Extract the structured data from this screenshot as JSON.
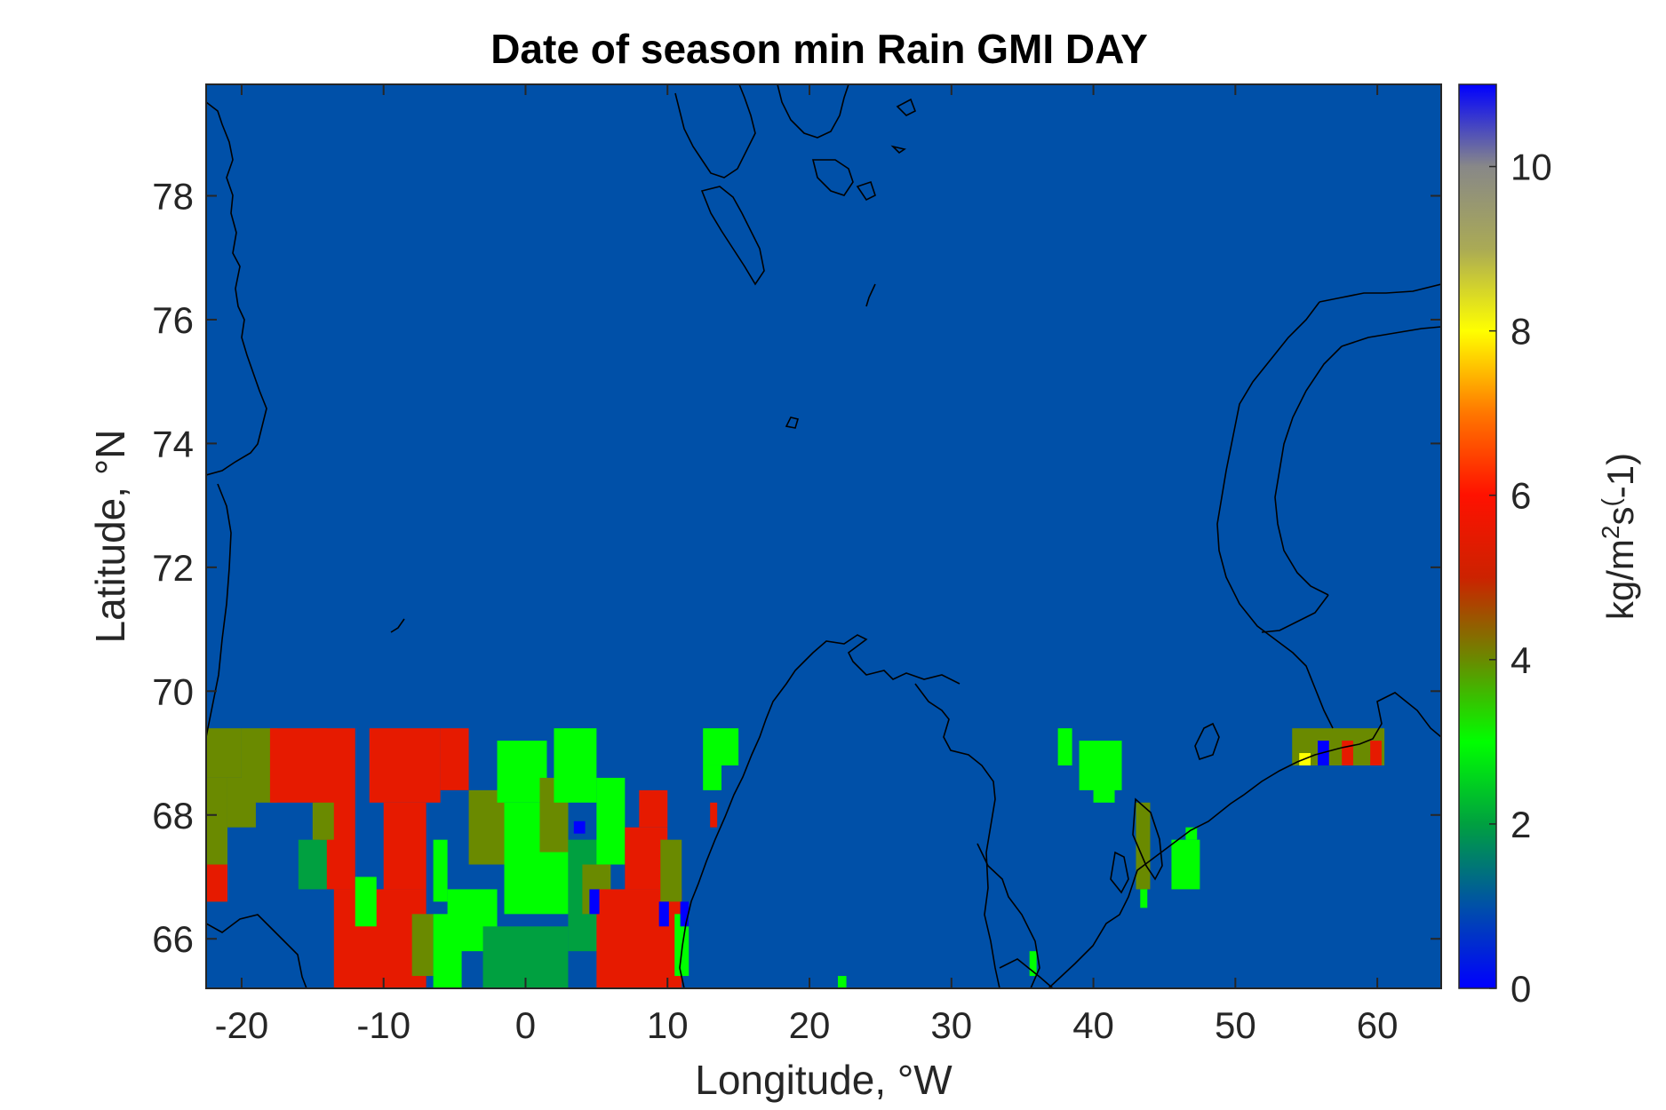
{
  "chart_data": {
    "type": "heatmap",
    "title": "Date of season min Rain GMI DAY",
    "xlabel": "Longitude, °W",
    "ylabel": "Latitude, °N",
    "xlim": [
      -22.5,
      64.5
    ],
    "ylim": [
      65.2,
      79.8
    ],
    "xticks": [
      -20,
      -10,
      0,
      10,
      20,
      30,
      40,
      50,
      60
    ],
    "yticks": [
      66,
      68,
      70,
      72,
      74,
      76,
      78
    ],
    "background_value": 1,
    "colorbar": {
      "label": "kg/m²s(-1)",
      "label_parts": [
        "kg/m",
        "2",
        "s",
        "(",
        "-1)"
      ],
      "range": [
        0,
        11
      ],
      "ticks": [
        0,
        2,
        4,
        6,
        8,
        10
      ],
      "stops": [
        {
          "v": 0,
          "color": "#0000ff"
        },
        {
          "v": 1,
          "color": "#0050a8"
        },
        {
          "v": 2,
          "color": "#00a040"
        },
        {
          "v": 3,
          "color": "#00ff00"
        },
        {
          "v": 4,
          "color": "#6a8a00"
        },
        {
          "v": 5,
          "color": "#cc2200"
        },
        {
          "v": 6,
          "color": "#ff1100"
        },
        {
          "v": 7,
          "color": "#ff7700"
        },
        {
          "v": 8,
          "color": "#ffff00"
        },
        {
          "v": 9,
          "color": "#aaaa55"
        },
        {
          "v": 10,
          "color": "#888888"
        },
        {
          "v": 11,
          "color": "#0000ff"
        }
      ]
    },
    "cells": [
      {
        "lon": [
          -22.5,
          -20
        ],
        "lat": [
          68.6,
          69.4
        ],
        "value": 4
      },
      {
        "lon": [
          -22.5,
          -21
        ],
        "lat": [
          66.6,
          68.6
        ],
        "value": 4
      },
      {
        "lon": [
          -22.5,
          -21
        ],
        "lat": [
          66.6,
          67.2
        ],
        "value": 5.5
      },
      {
        "lon": [
          -20,
          -17.5
        ],
        "lat": [
          68.2,
          69.4
        ],
        "value": 4
      },
      {
        "lon": [
          -21,
          -19
        ],
        "lat": [
          67.8,
          68.6
        ],
        "value": 4
      },
      {
        "lon": [
          -18,
          -14
        ],
        "lat": [
          68.2,
          69.4
        ],
        "value": 5.5
      },
      {
        "lon": [
          -14.5,
          -12
        ],
        "lat": [
          66.8,
          69.4
        ],
        "value": 5.5
      },
      {
        "lon": [
          -13.5,
          -10
        ],
        "lat": [
          65.2,
          66.8
        ],
        "value": 5.5
      },
      {
        "lon": [
          -11,
          -6
        ],
        "lat": [
          68.2,
          69.4
        ],
        "value": 5.5
      },
      {
        "lon": [
          -10,
          -7
        ],
        "lat": [
          66.8,
          68.2
        ],
        "value": 5.5
      },
      {
        "lon": [
          -10.5,
          -7
        ],
        "lat": [
          65.2,
          66.8
        ],
        "value": 5.5
      },
      {
        "lon": [
          -16,
          -14
        ],
        "lat": [
          66.8,
          67.6
        ],
        "value": 2
      },
      {
        "lon": [
          -15,
          -13.5
        ],
        "lat": [
          67.6,
          68.2
        ],
        "value": 4
      },
      {
        "lon": [
          -12,
          -10.5
        ],
        "lat": [
          66.2,
          67.0
        ],
        "value": 3
      },
      {
        "lon": [
          -8,
          -6.5
        ],
        "lat": [
          65.4,
          66.4
        ],
        "value": 4
      },
      {
        "lon": [
          -6,
          -4
        ],
        "lat": [
          68.4,
          69.4
        ],
        "value": 5.5
      },
      {
        "lon": [
          -6.5,
          -5.5
        ],
        "lat": [
          66.6,
          67.6
        ],
        "value": 3
      },
      {
        "lon": [
          -6.5,
          -4.5
        ],
        "lat": [
          65.2,
          66.4
        ],
        "value": 3
      },
      {
        "lon": [
          -5.5,
          -2
        ],
        "lat": [
          65.8,
          66.8
        ],
        "value": 3
      },
      {
        "lon": [
          -4,
          -1.5
        ],
        "lat": [
          67.2,
          68.4
        ],
        "value": 4
      },
      {
        "lon": [
          -3,
          3
        ],
        "lat": [
          65.2,
          66.2
        ],
        "value": 2
      },
      {
        "lon": [
          -2,
          1.5
        ],
        "lat": [
          68.2,
          69.2
        ],
        "value": 3
      },
      {
        "lon": [
          -1.5,
          3
        ],
        "lat": [
          66.4,
          68.2
        ],
        "value": 3
      },
      {
        "lon": [
          1,
          3
        ],
        "lat": [
          67.4,
          68.6
        ],
        "value": 4
      },
      {
        "lon": [
          2,
          5
        ],
        "lat": [
          68.2,
          69.4
        ],
        "value": 3
      },
      {
        "lon": [
          3,
          5.5
        ],
        "lat": [
          65.8,
          67.6
        ],
        "value": 2
      },
      {
        "lon": [
          5,
          7
        ],
        "lat": [
          67.2,
          68.6
        ],
        "value": 3
      },
      {
        "lon": [
          4,
          6
        ],
        "lat": [
          66.4,
          67.2
        ],
        "value": 4
      },
      {
        "lon": [
          5,
          11
        ],
        "lat": [
          65.2,
          66.8
        ],
        "value": 5.5
      },
      {
        "lon": [
          7,
          10
        ],
        "lat": [
          66.8,
          67.8
        ],
        "value": 5.5
      },
      {
        "lon": [
          8,
          10
        ],
        "lat": [
          67.8,
          68.4
        ],
        "value": 5.5
      },
      {
        "lon": [
          9.5,
          11
        ],
        "lat": [
          66.6,
          67.6
        ],
        "value": 4
      },
      {
        "lon": [
          10.5,
          11.5
        ],
        "lat": [
          65.4,
          66.4
        ],
        "value": 3
      },
      {
        "lon": [
          3.4,
          4.2
        ],
        "lat": [
          67.7,
          67.9
        ],
        "value": 0
      },
      {
        "lon": [
          4.5,
          5.2
        ],
        "lat": [
          66.4,
          66.8
        ],
        "value": 0
      },
      {
        "lon": [
          9.4,
          10.1
        ],
        "lat": [
          66.2,
          66.6
        ],
        "value": 0
      },
      {
        "lon": [
          10.9,
          11.5
        ],
        "lat": [
          66.2,
          66.6
        ],
        "value": 0
      },
      {
        "lon": [
          12.5,
          15
        ],
        "lat": [
          68.8,
          69.4
        ],
        "value": 3
      },
      {
        "lon": [
          12.5,
          13.8
        ],
        "lat": [
          68.4,
          68.8
        ],
        "value": 3
      },
      {
        "lon": [
          13,
          13.5
        ],
        "lat": [
          67.8,
          68.2
        ],
        "value": 5.5
      },
      {
        "lon": [
          22,
          22.6
        ],
        "lat": [
          65.2,
          65.4
        ],
        "value": 3
      },
      {
        "lon": [
          35.5,
          36
        ],
        "lat": [
          65.4,
          65.8
        ],
        "value": 3
      },
      {
        "lon": [
          37.5,
          38.5
        ],
        "lat": [
          68.8,
          69.4
        ],
        "value": 3
      },
      {
        "lon": [
          39,
          42
        ],
        "lat": [
          68.4,
          69.2
        ],
        "value": 3
      },
      {
        "lon": [
          40,
          41.5
        ],
        "lat": [
          68.2,
          68.6
        ],
        "value": 3
      },
      {
        "lon": [
          43,
          44
        ],
        "lat": [
          66.8,
          68.2
        ],
        "value": 4
      },
      {
        "lon": [
          43.3,
          43.8
        ],
        "lat": [
          66.5,
          66.8
        ],
        "value": 3
      },
      {
        "lon": [
          45.5,
          47.5
        ],
        "lat": [
          66.8,
          67.6
        ],
        "value": 3
      },
      {
        "lon": [
          46.5,
          47.3
        ],
        "lat": [
          67.6,
          67.8
        ],
        "value": 3
      },
      {
        "lon": [
          54,
          60.5
        ],
        "lat": [
          68.8,
          69.4
        ],
        "value": 4
      },
      {
        "lon": [
          55.8,
          56.6
        ],
        "lat": [
          68.8,
          69.2
        ],
        "value": 0
      },
      {
        "lon": [
          57.5,
          58.3
        ],
        "lat": [
          68.8,
          69.2
        ],
        "value": 5.5
      },
      {
        "lon": [
          59.5,
          60.3
        ],
        "lat": [
          68.8,
          69.2
        ],
        "value": 5.5
      },
      {
        "lon": [
          54.5,
          55.3
        ],
        "lat": [
          68.8,
          69.0
        ],
        "value": 8
      }
    ]
  }
}
